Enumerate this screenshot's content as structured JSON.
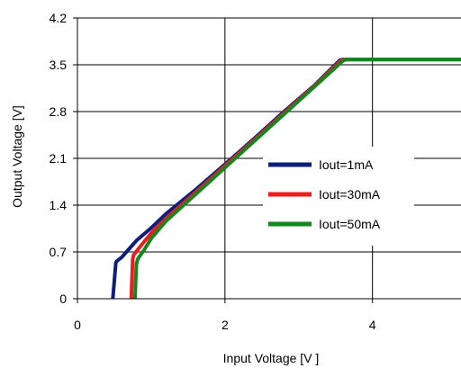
{
  "chart_data": {
    "type": "line",
    "title": "",
    "xlabel": "Input Voltage [V ]",
    "ylabel": "Output Voltage [V]",
    "xlim": [
      0,
      5.2
    ],
    "ylim": [
      0,
      4.2
    ],
    "xticks": [
      0,
      2,
      4
    ],
    "xtick_labels": [
      "0",
      "2",
      "4"
    ],
    "yticks": [
      0,
      0.7,
      1.4,
      2.1,
      2.8,
      3.5,
      4.2
    ],
    "ytick_labels": [
      "0",
      "0.7",
      "1.4",
      "2.1",
      "2.8",
      "3.5",
      "4.2"
    ],
    "grid": true,
    "legend_position": "center-right",
    "series": [
      {
        "name": "Iout=1mA",
        "color": "#0d1f7a",
        "x": [
          0.48,
          0.52,
          0.53,
          0.6,
          0.68,
          0.8,
          1.0,
          1.2,
          1.6,
          2.0,
          2.4,
          2.8,
          3.2,
          3.56,
          3.6,
          5.2
        ],
        "y": [
          0.0,
          0.53,
          0.56,
          0.62,
          0.72,
          0.87,
          1.06,
          1.27,
          1.63,
          2.01,
          2.4,
          2.8,
          3.18,
          3.57,
          3.58,
          3.58
        ]
      },
      {
        "name": "Iout=30mA",
        "color": "#ee1c1c",
        "x": [
          0.73,
          0.75,
          0.76,
          0.85,
          1.0,
          1.2,
          1.6,
          2.0,
          2.4,
          2.8,
          3.2,
          3.57,
          3.62,
          5.2
        ],
        "y": [
          0.0,
          0.6,
          0.65,
          0.78,
          0.98,
          1.2,
          1.59,
          1.99,
          2.38,
          2.78,
          3.17,
          3.56,
          3.58,
          3.58
        ]
      },
      {
        "name": "Iout=50mA",
        "color": "#15861d",
        "x": [
          0.78,
          0.8,
          0.82,
          0.9,
          1.0,
          1.2,
          1.6,
          2.0,
          2.4,
          2.8,
          3.2,
          3.6,
          3.65,
          5.2
        ],
        "y": [
          0.0,
          0.52,
          0.6,
          0.72,
          0.9,
          1.16,
          1.56,
          1.96,
          2.36,
          2.76,
          3.16,
          3.56,
          3.58,
          3.58
        ]
      }
    ]
  }
}
